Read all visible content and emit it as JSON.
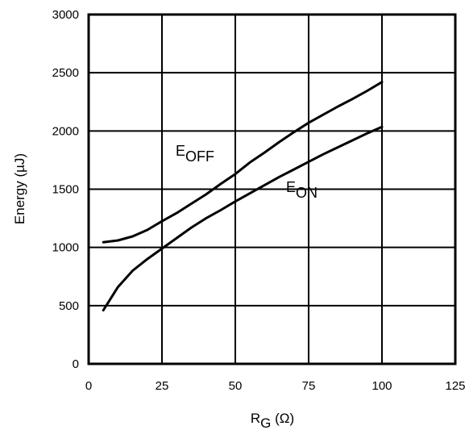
{
  "chart_data": {
    "type": "line",
    "xlabel": {
      "main": "R",
      "sub": "G",
      "unit": " (Ω)"
    },
    "ylabel": "Energy (µJ)",
    "xlim": [
      0,
      125
    ],
    "ylim": [
      0,
      3000
    ],
    "xticks": [
      "0",
      "25",
      "50",
      "75",
      "100",
      "125"
    ],
    "yticks": [
      "0",
      "500",
      "1000",
      "1500",
      "2000",
      "2500",
      "3000"
    ],
    "grid": true,
    "series": [
      {
        "name": "EOFF",
        "label_main": "E",
        "label_sub": "OFF",
        "color": "#000000",
        "x": [
          5,
          10,
          15,
          20,
          25,
          30,
          35,
          40,
          45,
          50,
          55,
          60,
          65,
          70,
          75,
          80,
          85,
          90,
          95,
          100
        ],
        "y": [
          1045,
          1060,
          1095,
          1150,
          1225,
          1295,
          1375,
          1455,
          1545,
          1630,
          1730,
          1815,
          1905,
          1990,
          2070,
          2140,
          2210,
          2275,
          2345,
          2420
        ]
      },
      {
        "name": "EON",
        "label_main": "E",
        "label_sub": "ON",
        "color": "#000000",
        "x": [
          5,
          10,
          15,
          20,
          25,
          30,
          35,
          40,
          45,
          50,
          55,
          60,
          65,
          70,
          75,
          80,
          85,
          90,
          95,
          100
        ],
        "y": [
          460,
          660,
          800,
          900,
          990,
          1080,
          1170,
          1250,
          1320,
          1395,
          1465,
          1535,
          1605,
          1670,
          1735,
          1800,
          1860,
          1920,
          1980,
          2035
        ]
      }
    ]
  }
}
